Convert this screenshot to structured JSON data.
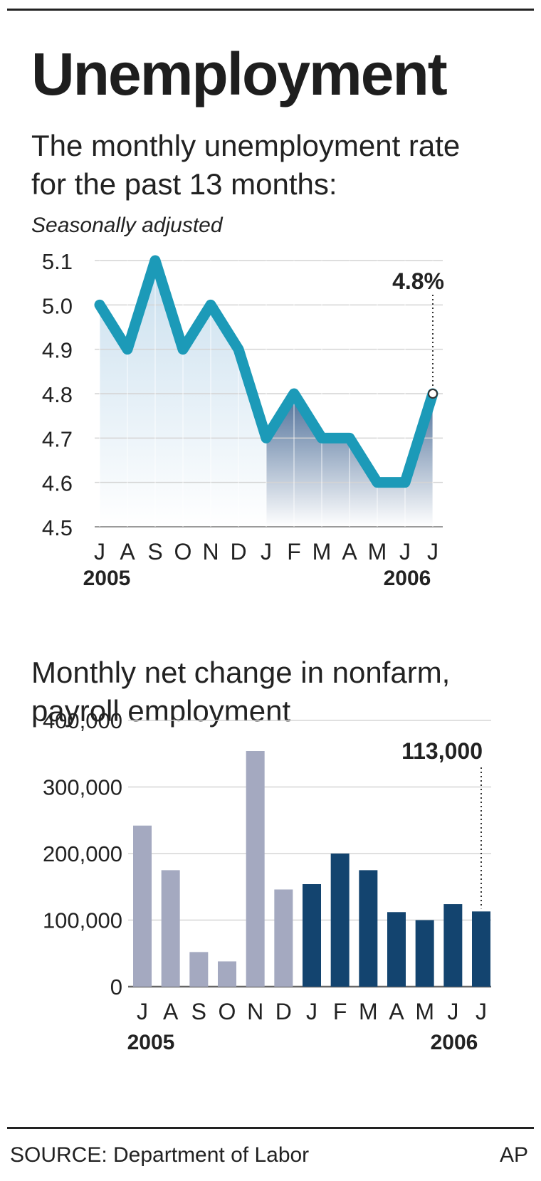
{
  "title": "Unemployment",
  "subtitle": "The monthly unemployment rate for the past 13 months:",
  "note": "Seasonally adjusted",
  "chart_data": [
    {
      "type": "area",
      "title": "The monthly unemployment rate for the past 13 months:",
      "note": "Seasonally adjusted",
      "categories": [
        "J",
        "A",
        "S",
        "O",
        "N",
        "D",
        "J",
        "F",
        "M",
        "A",
        "M",
        "J",
        "J"
      ],
      "year_labels": [
        "2005",
        "2006"
      ],
      "values": [
        5.0,
        4.9,
        5.1,
        4.9,
        5.0,
        4.9,
        4.7,
        4.8,
        4.7,
        4.7,
        4.6,
        4.6,
        4.8
      ],
      "yticks": [
        "4.5",
        "4.6",
        "4.7",
        "4.8",
        "4.9",
        "5.0",
        "5.1"
      ],
      "ylim": [
        4.5,
        5.1
      ],
      "callout": "4.8%",
      "grid": true,
      "colors": {
        "line": "#1c9ab8",
        "fill_2005": "#c9dfee",
        "fill_2006": "#4e6f99"
      }
    },
    {
      "type": "bar",
      "title": "Monthly net change in nonfarm, payroll employment",
      "categories": [
        "J",
        "A",
        "S",
        "O",
        "N",
        "D",
        "J",
        "F",
        "M",
        "A",
        "M",
        "J",
        "J"
      ],
      "year_labels": [
        "2005",
        "2006"
      ],
      "values": [
        242000,
        175000,
        52000,
        38000,
        354000,
        146000,
        154000,
        200000,
        175000,
        112000,
        100000,
        124000,
        113000
      ],
      "yticks": [
        "0",
        "100,000",
        "200,000",
        "300,000",
        "400,000"
      ],
      "ylim": [
        0,
        400000
      ],
      "callout": "113,000",
      "grid": true,
      "colors": {
        "bar_2005": "#a4a9c0",
        "bar_2006": "#13446f"
      }
    }
  ],
  "source": "SOURCE: Department of Labor",
  "credit": "AP"
}
